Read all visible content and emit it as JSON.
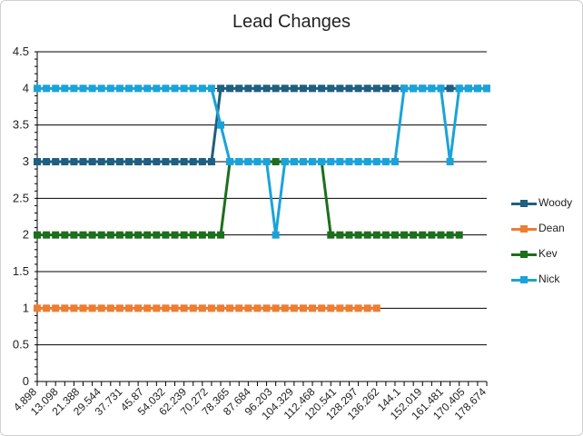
{
  "chart_data": {
    "type": "line",
    "title": "Lead Changes",
    "xlabel": "",
    "ylabel": "",
    "ylim": [
      0,
      4.5
    ],
    "yticks": [
      "0",
      "0.5",
      "1",
      "1.5",
      "2",
      "2.5",
      "3",
      "3.5",
      "4",
      "4.5"
    ],
    "xtick_labels": [
      "4.898",
      "13.098",
      "21.388",
      "29.544",
      "37.731",
      "45.87",
      "54.032",
      "62.239",
      "70.272",
      "78.365",
      "87.684",
      "96.203",
      "104.329",
      "112.468",
      "120.541",
      "128.297",
      "136.262",
      "144.1",
      "152.019",
      "161.481",
      "170.405",
      "178.674"
    ],
    "grid": "horizontal",
    "legend_position": "right",
    "series": [
      {
        "name": "Woody",
        "color": "#1f5f7f",
        "values": [
          3,
          3,
          3,
          3,
          3,
          3,
          3,
          3,
          3,
          3,
          3,
          3,
          3,
          3,
          3,
          3,
          3,
          3,
          3,
          3,
          4,
          4,
          4,
          4,
          4,
          4,
          4,
          4,
          4,
          4,
          4,
          4,
          4,
          4,
          4,
          4,
          4,
          4,
          4,
          4,
          4,
          4,
          4,
          4,
          4,
          4,
          4,
          4,
          4,
          4
        ]
      },
      {
        "name": "Dean",
        "color": "#ed7d31",
        "values": [
          1,
          1,
          1,
          1,
          1,
          1,
          1,
          1,
          1,
          1,
          1,
          1,
          1,
          1,
          1,
          1,
          1,
          1,
          1,
          1,
          1,
          1,
          1,
          1,
          1,
          1,
          1,
          1,
          1,
          1,
          1,
          1,
          1,
          1,
          1,
          1,
          1,
          1,
          null,
          null,
          null,
          null,
          null,
          null,
          null,
          null,
          null,
          null,
          null,
          null
        ]
      },
      {
        "name": "Kev",
        "color": "#1d6e1d",
        "values": [
          2,
          2,
          2,
          2,
          2,
          2,
          2,
          2,
          2,
          2,
          2,
          2,
          2,
          2,
          2,
          2,
          2,
          2,
          2,
          2,
          2,
          3,
          3,
          3,
          3,
          3,
          3,
          3,
          3,
          3,
          3,
          3,
          2,
          2,
          2,
          2,
          2,
          2,
          2,
          2,
          2,
          2,
          2,
          2,
          2,
          2,
          2,
          null,
          null,
          null
        ]
      },
      {
        "name": "Nick",
        "color": "#1aa3d9",
        "values": [
          4,
          4,
          4,
          4,
          4,
          4,
          4,
          4,
          4,
          4,
          4,
          4,
          4,
          4,
          4,
          4,
          4,
          4,
          4,
          4,
          3.5,
          3,
          3,
          3,
          3,
          3,
          2,
          3,
          3,
          3,
          3,
          3,
          3,
          3,
          3,
          3,
          3,
          3,
          3,
          3,
          4,
          4,
          4,
          4,
          4,
          3,
          4,
          4,
          4,
          4
        ]
      }
    ]
  }
}
